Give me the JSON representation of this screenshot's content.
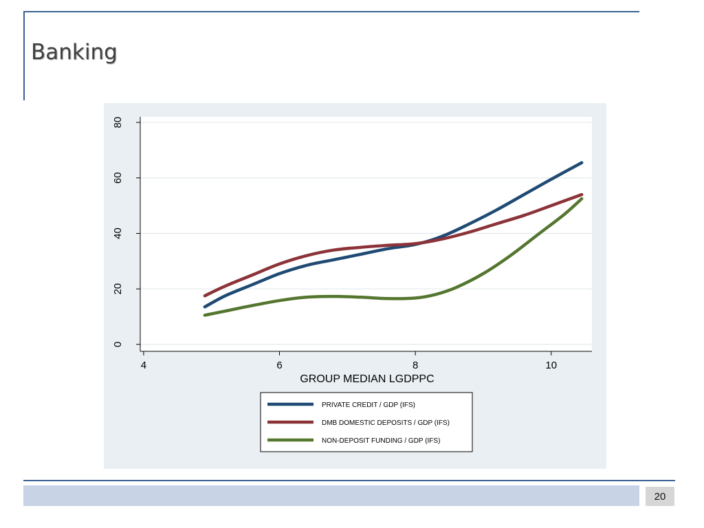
{
  "slide": {
    "title": "Banking",
    "page_number": "20"
  },
  "colors": {
    "rule": "#3b5f92",
    "panel_bg": "#e9eff2",
    "plot_bg": "#ffffff",
    "grid": "#e3eaee",
    "band": "#c8d4e6"
  },
  "chart_data": {
    "type": "line",
    "title": "",
    "xlabel": "GROUP MEDIAN LGDPPC",
    "ylabel": "",
    "xlim": [
      3.95,
      10.6
    ],
    "ylim": [
      -2.5,
      82
    ],
    "xticks": [
      4,
      6,
      8,
      10
    ],
    "yticks": [
      0,
      20,
      40,
      60,
      80
    ],
    "grid": true,
    "legend_position": "bottom-center",
    "series": [
      {
        "name": "PRIVATE CREDIT / GDP (IFS)",
        "color": "#1f4a73",
        "x": [
          4.9,
          5.2,
          5.6,
          6.0,
          6.4,
          6.8,
          7.2,
          7.6,
          8.0,
          8.4,
          8.8,
          9.2,
          9.6,
          10.0,
          10.45
        ],
        "y": [
          13.5,
          17.5,
          21.5,
          25.5,
          28.5,
          30.5,
          32.5,
          34.5,
          36.0,
          39.0,
          43.5,
          48.5,
          54.0,
          59.5,
          65.5
        ]
      },
      {
        "name": "DMB DOMESTIC DEPOSITS / GDP (IFS)",
        "color": "#8c3339",
        "x": [
          4.9,
          5.2,
          5.6,
          6.0,
          6.4,
          6.8,
          7.2,
          7.6,
          8.0,
          8.4,
          8.8,
          9.2,
          9.6,
          10.0,
          10.45
        ],
        "y": [
          17.5,
          21.0,
          25.0,
          29.0,
          32.0,
          34.0,
          35.0,
          35.7,
          36.3,
          38.0,
          40.5,
          43.5,
          46.5,
          50.0,
          54.0
        ]
      },
      {
        "name": "NON-DEPOSIT FUNDING / GDP (IFS)",
        "color": "#54762f",
        "x": [
          4.9,
          5.2,
          5.6,
          6.0,
          6.4,
          6.8,
          7.2,
          7.6,
          8.0,
          8.3,
          8.6,
          9.0,
          9.4,
          9.8,
          10.2,
          10.45
        ],
        "y": [
          10.5,
          12.0,
          14.0,
          15.8,
          17.0,
          17.3,
          17.0,
          16.5,
          16.7,
          18.0,
          20.5,
          25.5,
          32.0,
          39.5,
          47.0,
          52.5
        ]
      }
    ]
  }
}
